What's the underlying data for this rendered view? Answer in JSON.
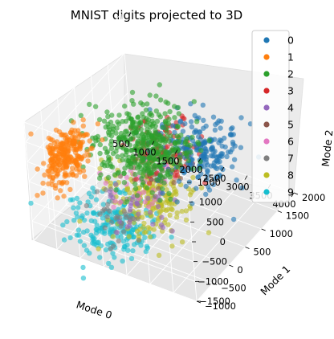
{
  "chart_data": {
    "type": "scatter",
    "projection": "3d",
    "title": "MNIST digits projected to 3D",
    "axes": {
      "x": {
        "label": "Mode 0",
        "ticks": [
          "500",
          "1000",
          "1500",
          "2000",
          "2500",
          "3000",
          "3500",
          "4000"
        ],
        "range": [
          500,
          4000
        ]
      },
      "y": {
        "label": "Mode 1",
        "ticks": [
          "−1000",
          "−500",
          "0",
          "500",
          "1000",
          "1500",
          "2000"
        ],
        "range": [
          -1000,
          2000
        ]
      },
      "z": {
        "label": "Mode 2",
        "ticks": [
          "−1500",
          "−1000",
          "−500",
          "0",
          "500",
          "1000",
          "1500"
        ],
        "range": [
          -1500,
          1500
        ]
      }
    },
    "grid": true,
    "legend_position": "top-right",
    "series": [
      {
        "name": "0",
        "color": "#1f77b4",
        "center": [
          3100,
          600,
          400
        ]
      },
      {
        "name": "1",
        "color": "#ff7f0e",
        "center": [
          800,
          -300,
          100
        ]
      },
      {
        "name": "2",
        "color": "#2ca02c",
        "center": [
          2100,
          300,
          400
        ]
      },
      {
        "name": "3",
        "color": "#d62728",
        "center": [
          2500,
          400,
          500
        ]
      },
      {
        "name": "4",
        "color": "#9467bd",
        "center": [
          2300,
          -200,
          -700
        ]
      },
      {
        "name": "5",
        "color": "#8c564b",
        "center": [
          2400,
          200,
          0
        ]
      },
      {
        "name": "6",
        "color": "#e377c2",
        "center": [
          2200,
          100,
          -200
        ]
      },
      {
        "name": "7",
        "color": "#7f7f7f",
        "center": [
          2000,
          -400,
          -800
        ]
      },
      {
        "name": "8",
        "color": "#bcbd22",
        "center": [
          2400,
          -100,
          -400
        ]
      },
      {
        "name": "9",
        "color": "#17becf",
        "center": [
          1900,
          -500,
          -1000
        ]
      }
    ]
  }
}
